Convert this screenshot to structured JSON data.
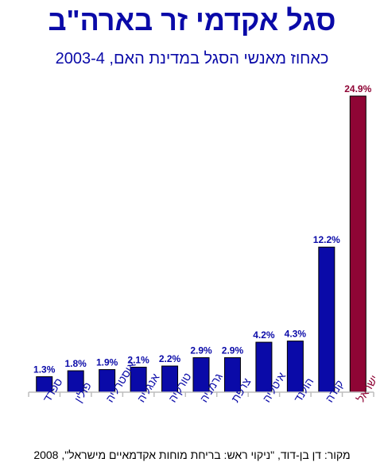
{
  "colors": {
    "title": "#0a0aa8",
    "bar": "#0a0aa8",
    "highlight": "#8f0535",
    "axis": "#bdbdbd"
  },
  "chart_data": {
    "type": "bar",
    "title": "סגל אקדמי זר בארה\"ב",
    "subtitle": "כאחוז מאנשי הסגל במדינת האם, 2003-4",
    "source": "מקור: דן בן-דוד, \"ניקוי ראש: בריחת מוחות אקדמאיים מישראל\", 2008",
    "categories": [
      "ספרד",
      "פולין",
      "אוסטרליה",
      "אנגליה",
      "טורקיה",
      "גרמניה",
      "צרפת",
      "איטליה",
      "הולנד",
      "קנדה",
      "ישראל"
    ],
    "values": [
      1.3,
      1.8,
      1.9,
      2.1,
      2.2,
      2.9,
      2.9,
      4.2,
      4.3,
      12.2,
      24.9
    ],
    "value_labels": [
      "1.3%",
      "1.8%",
      "1.9%",
      "2.1%",
      "2.2%",
      "2.9%",
      "2.9%",
      "4.2%",
      "4.3%",
      "12.2%",
      "24.9%"
    ],
    "highlight_category": "ישראל",
    "ylim": [
      0,
      24.9
    ],
    "grid": false,
    "legend": "none"
  }
}
